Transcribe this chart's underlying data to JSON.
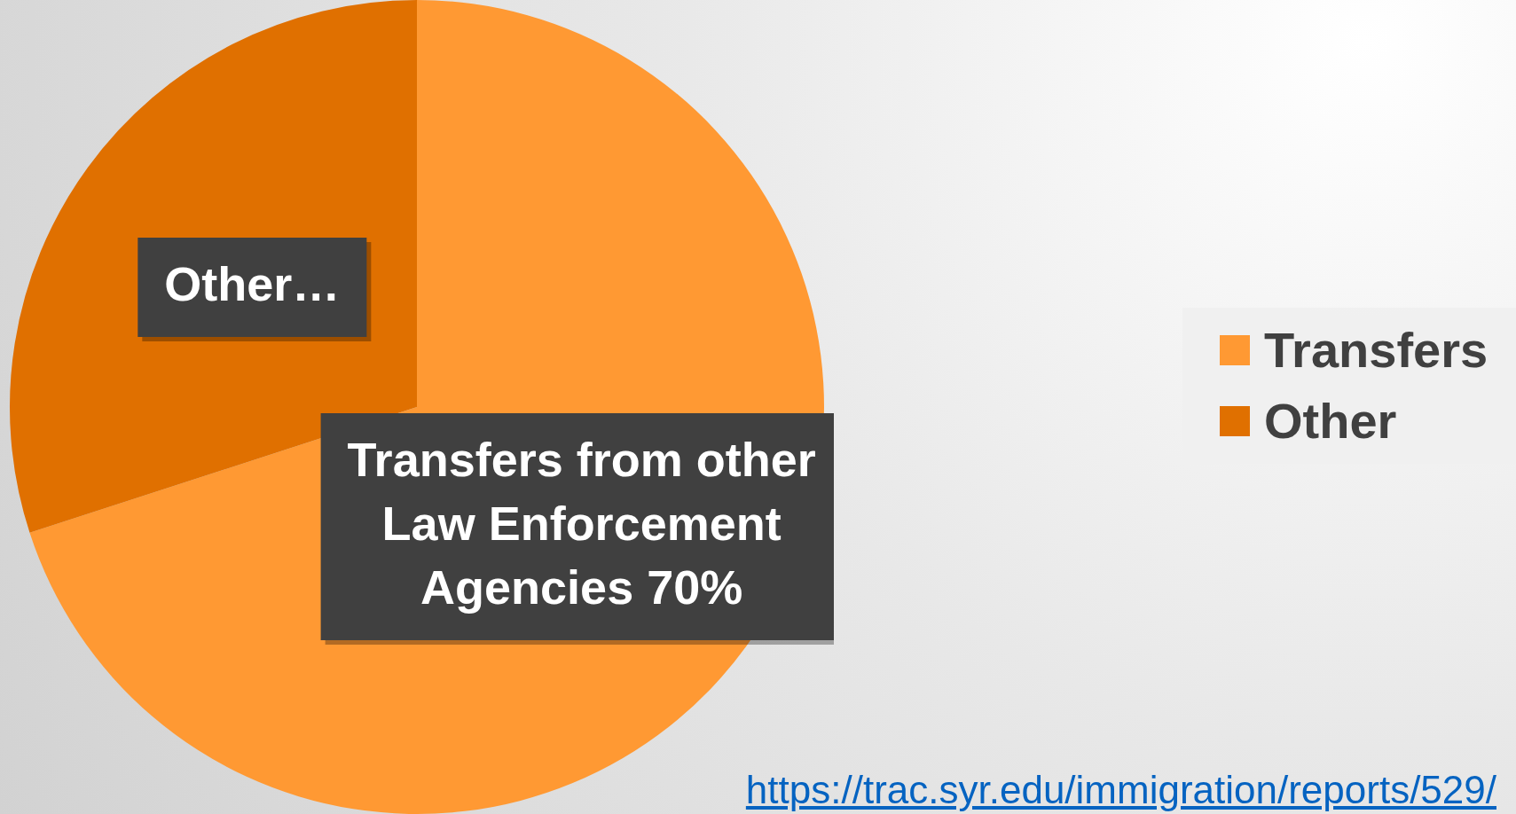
{
  "chart_data": {
    "type": "pie",
    "categories": [
      "Transfers",
      "Other"
    ],
    "values": [
      70,
      30
    ],
    "colors": [
      "#ff9933",
      "#e07000"
    ],
    "value_labels": [
      "Transfers from other Law Enforcement Agencies 70%",
      "Other…"
    ],
    "legend": "right",
    "annotations": [
      "https://trac.syr.edu/immigration/reports/529/"
    ]
  }
}
